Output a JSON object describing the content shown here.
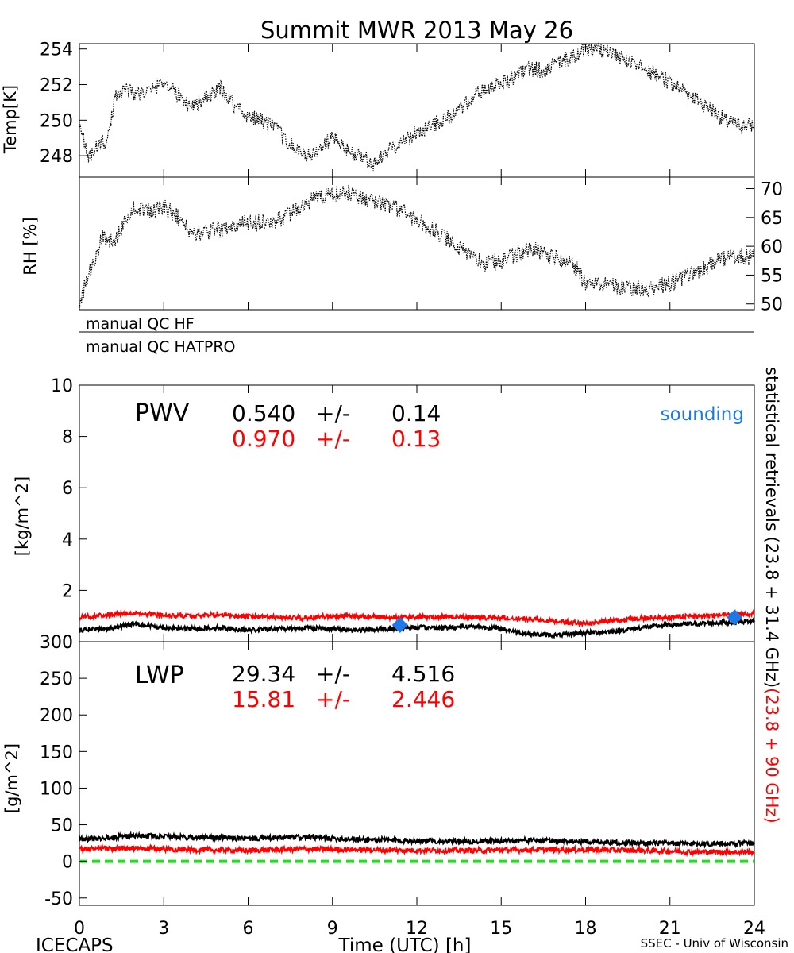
{
  "title": "Summit MWR 2013 May 26",
  "footer": {
    "left": "ICECAPS",
    "right": "SSEC - Univ of Wisconsin"
  },
  "colors": {
    "black": "#000000",
    "red": "#ff0000",
    "blue": "#1e78e6",
    "green": "#22dd22"
  },
  "qc": {
    "hf": "manual QC HF",
    "hatpro": "manual QC HATPRO"
  },
  "side_labels": {
    "black_part": "statistical retrievals (23.8 + 31.4 GHz)",
    "red_part": "(23.8 + 90 GHz)"
  },
  "chart_data": [
    {
      "id": "temp",
      "type": "line",
      "ylabel": "Temp[K]",
      "ylim": [
        246.8,
        254.3
      ],
      "yticks": [
        248,
        250,
        252,
        254
      ],
      "xlim": [
        0,
        24
      ],
      "series": [
        {
          "color": "#000000",
          "style": "dotted",
          "x": [
            0,
            0.3,
            0.7,
            1.0,
            1.3,
            1.6,
            2.0,
            2.5,
            3.0,
            3.5,
            4.0,
            4.5,
            5.0,
            5.5,
            6.0,
            6.5,
            7.0,
            7.5,
            8.0,
            8.5,
            9.0,
            9.5,
            10.0,
            10.5,
            11.0,
            11.5,
            12.0,
            12.5,
            13.0,
            13.5,
            14.0,
            14.5,
            15.0,
            15.5,
            16.0,
            16.5,
            17.0,
            17.5,
            18.0,
            18.5,
            19.0,
            19.5,
            20.0,
            20.5,
            21.0,
            21.5,
            22.0,
            22.5,
            23.0,
            23.5,
            24.0
          ],
          "y": [
            250.0,
            247.8,
            248.7,
            248.8,
            251.5,
            251.8,
            251.5,
            251.6,
            252.2,
            251.4,
            250.8,
            251.2,
            251.8,
            250.9,
            250.2,
            250.0,
            249.5,
            248.6,
            248.0,
            248.2,
            249.1,
            248.3,
            248.0,
            247.5,
            248.3,
            248.8,
            249.3,
            249.7,
            250.1,
            250.5,
            251.3,
            251.8,
            252.1,
            252.4,
            252.9,
            252.8,
            253.2,
            253.5,
            254.1,
            253.9,
            253.7,
            253.3,
            252.9,
            252.6,
            252.1,
            251.7,
            251.1,
            250.6,
            249.9,
            249.7,
            249.7
          ]
        }
      ]
    },
    {
      "id": "rh",
      "type": "line",
      "ylabel": "RH [%]",
      "yaxis_side": "right",
      "ylim": [
        49,
        72
      ],
      "yticks": [
        50,
        55,
        60,
        65,
        70
      ],
      "xlim": [
        0,
        24
      ],
      "series": [
        {
          "color": "#000000",
          "style": "dotted",
          "x": [
            0,
            0.4,
            0.8,
            1.2,
            1.6,
            2.0,
            2.5,
            3.0,
            3.5,
            4.0,
            4.5,
            5.0,
            5.5,
            6.0,
            6.5,
            7.0,
            7.5,
            8.0,
            8.5,
            9.0,
            9.5,
            10.0,
            10.5,
            11.0,
            11.5,
            12.0,
            12.5,
            13.0,
            13.5,
            14.0,
            14.5,
            15.0,
            15.5,
            16.0,
            16.5,
            17.0,
            17.5,
            18.0,
            18.5,
            19.0,
            19.5,
            20.0,
            20.5,
            21.0,
            21.5,
            22.0,
            22.5,
            23.0,
            23.5,
            24.0
          ],
          "y": [
            50.5,
            56.0,
            61.5,
            60.5,
            64.0,
            67.0,
            66.0,
            67.0,
            65.0,
            62.0,
            62.5,
            63.0,
            63.5,
            64.0,
            64.0,
            64.5,
            65.5,
            67.5,
            68.5,
            69.0,
            69.5,
            68.5,
            68.0,
            67.0,
            66.0,
            64.5,
            63.0,
            61.5,
            60.0,
            58.0,
            57.0,
            57.5,
            58.5,
            59.5,
            59.0,
            58.0,
            57.5,
            53.5,
            53.5,
            53.0,
            53.0,
            52.5,
            53.0,
            53.5,
            54.5,
            55.5,
            57.0,
            58.0,
            58.5,
            58.0
          ]
        }
      ]
    },
    {
      "id": "pwv",
      "type": "line",
      "ylabel": "[kg/m^2]",
      "label": "PWV",
      "ylim": [
        0,
        10
      ],
      "yticks": [
        0,
        2,
        4,
        6,
        8,
        10
      ],
      "xlim": [
        0,
        24
      ],
      "stats": [
        {
          "value": "0.540",
          "pm": "+/-",
          "err": "0.14",
          "color": "#000000"
        },
        {
          "value": "0.970",
          "pm": "+/-",
          "err": "0.13",
          "color": "#ff0000"
        }
      ],
      "sounding_label": "sounding",
      "sounding": [
        {
          "x": 11.4,
          "y": 0.65
        },
        {
          "x": 23.3,
          "y": 0.95
        }
      ],
      "series": [
        {
          "color": "#ff0000",
          "style": "noisy",
          "x": [
            0,
            1,
            2,
            3,
            4,
            5,
            6,
            7,
            8,
            9,
            10,
            11,
            12,
            13,
            14,
            15,
            16,
            17,
            18,
            19,
            20,
            21,
            22,
            23,
            24
          ],
          "y": [
            0.95,
            1.05,
            1.12,
            1.02,
            1.0,
            1.05,
            0.98,
            0.95,
            0.92,
            1.0,
            0.98,
            0.95,
            0.95,
            0.98,
            0.95,
            0.92,
            0.88,
            0.8,
            0.7,
            0.82,
            0.92,
            0.95,
            1.0,
            1.05,
            1.1
          ]
        },
        {
          "color": "#000000",
          "style": "noisy",
          "x": [
            0,
            1,
            2,
            3,
            4,
            5,
            6,
            7,
            8,
            9,
            10,
            11,
            12,
            13,
            14,
            15,
            16,
            17,
            18,
            19,
            20,
            21,
            22,
            23,
            24
          ],
          "y": [
            0.45,
            0.5,
            0.7,
            0.55,
            0.5,
            0.55,
            0.45,
            0.5,
            0.55,
            0.5,
            0.45,
            0.5,
            0.55,
            0.55,
            0.6,
            0.5,
            0.3,
            0.25,
            0.35,
            0.4,
            0.55,
            0.65,
            0.7,
            0.75,
            0.8
          ]
        }
      ]
    },
    {
      "id": "lwp",
      "type": "line",
      "ylabel": "[g/m^2]",
      "label": "LWP",
      "ylim": [
        -60,
        300
      ],
      "yticks": [
        -50,
        0,
        50,
        100,
        150,
        200,
        250,
        300
      ],
      "xlim": [
        0,
        24
      ],
      "xlabel": "Time (UTC) [h]",
      "xticks": [
        0,
        3,
        6,
        9,
        12,
        15,
        18,
        21,
        24
      ],
      "stats": [
        {
          "value": "29.34",
          "pm": "+/-",
          "err": "4.516",
          "color": "#000000"
        },
        {
          "value": "15.81",
          "pm": "+/-",
          "err": "2.446",
          "color": "#ff0000"
        }
      ],
      "zero_line": {
        "y": 0,
        "color": "#22dd22",
        "style": "dashed"
      },
      "series": [
        {
          "color": "#000000",
          "style": "noisy",
          "x": [
            0,
            2,
            4,
            6,
            8,
            10,
            12,
            14,
            16,
            18,
            20,
            22,
            24
          ],
          "y": [
            30,
            35,
            33,
            31,
            33,
            30,
            28,
            27,
            29,
            27,
            25,
            24,
            25
          ]
        },
        {
          "color": "#ff0000",
          "style": "noisy",
          "x": [
            0,
            2,
            4,
            6,
            8,
            10,
            12,
            14,
            16,
            18,
            20,
            22,
            24
          ],
          "y": [
            17,
            18,
            16,
            15,
            17,
            16,
            15,
            15,
            16,
            16,
            15,
            13,
            13
          ]
        }
      ]
    }
  ]
}
